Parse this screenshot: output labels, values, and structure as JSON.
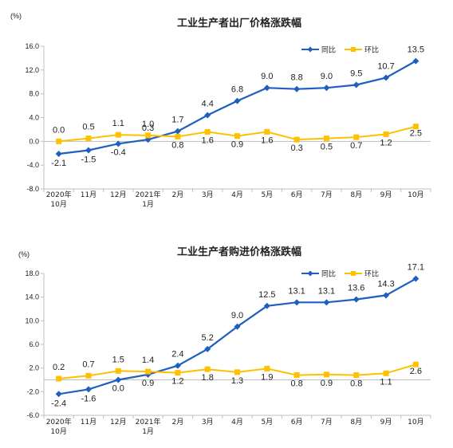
{
  "colors": {
    "series_yoy": "#1f5fbf",
    "series_mom": "#ffc000",
    "axis": "#bfbfbf"
  },
  "chart_data": [
    {
      "type": "line",
      "title": "工业生产者出厂价格涨跌幅",
      "unit": "(%)",
      "categories": [
        "2020年|10月",
        "11月",
        "12月",
        "2021年|1月",
        "2月",
        "3月",
        "4月",
        "5月",
        "6月",
        "7月",
        "8月",
        "9月",
        "10月"
      ],
      "ylim": [
        -8,
        16
      ],
      "yticks": [
        "16.0",
        "12.0",
        "8.0",
        "4.0",
        "0.0",
        "-4.0",
        "-8.0"
      ],
      "ytick_values": [
        16,
        12,
        8,
        4,
        0,
        -4,
        -8
      ],
      "legend": "top-right",
      "series": [
        {
          "name": "同比",
          "values": [
            -2.1,
            -1.5,
            -0.4,
            0.3,
            1.7,
            4.4,
            6.8,
            9.0,
            8.8,
            9.0,
            9.5,
            10.7,
            13.5
          ],
          "labels": [
            "-2.1",
            "-1.5",
            "-0.4",
            "0.3",
            "1.7",
            "4.4",
            "6.8",
            "9.0",
            "8.8",
            "9.0",
            "9.5",
            "10.7",
            "13.5"
          ]
        },
        {
          "name": "环比",
          "values": [
            0.0,
            0.5,
            1.1,
            1.0,
            0.8,
            1.6,
            0.9,
            1.6,
            0.3,
            0.5,
            0.7,
            1.2,
            2.5
          ],
          "labels": [
            "0.0",
            "0.5",
            "1.1",
            "1.0",
            "0.8",
            "1.6",
            "0.9",
            "1.6",
            "0.3",
            "0.5",
            "0.7",
            "1.2",
            "2.5"
          ]
        }
      ]
    },
    {
      "type": "line",
      "title": "工业生产者购进价格涨跌幅",
      "unit": "(%)",
      "categories": [
        "2020年|10月",
        "11月",
        "12月",
        "2021年|1月",
        "2月",
        "3月",
        "4月",
        "5月",
        "6月",
        "7月",
        "8月",
        "9月",
        "10月"
      ],
      "ylim": [
        -6,
        18
      ],
      "yticks": [
        "18.0",
        "14.0",
        "10.0",
        "6.0",
        "2.0",
        "-2.0",
        "-6.0"
      ],
      "ytick_values": [
        18,
        14,
        10,
        6,
        2,
        -2,
        -6
      ],
      "legend": "top-right",
      "series": [
        {
          "name": "同比",
          "values": [
            -2.4,
            -1.6,
            0.0,
            0.9,
            2.4,
            5.2,
            9.0,
            12.5,
            13.1,
            13.1,
            13.6,
            14.3,
            17.1
          ],
          "labels": [
            "-2.4",
            "-1.6",
            "0.0",
            "0.9",
            "2.4",
            "5.2",
            "9.0",
            "12.5",
            "13.1",
            "13.1",
            "13.6",
            "14.3",
            "17.1"
          ]
        },
        {
          "name": "环比",
          "values": [
            0.2,
            0.7,
            1.5,
            1.4,
            1.2,
            1.8,
            1.3,
            1.9,
            0.8,
            0.9,
            0.8,
            1.1,
            2.6
          ],
          "labels": [
            "0.2",
            "0.7",
            "1.5",
            "1.4",
            "1.2",
            "1.8",
            "1.3",
            "1.9",
            "0.8",
            "0.9",
            "0.8",
            "1.1",
            "2.6"
          ]
        }
      ]
    }
  ]
}
